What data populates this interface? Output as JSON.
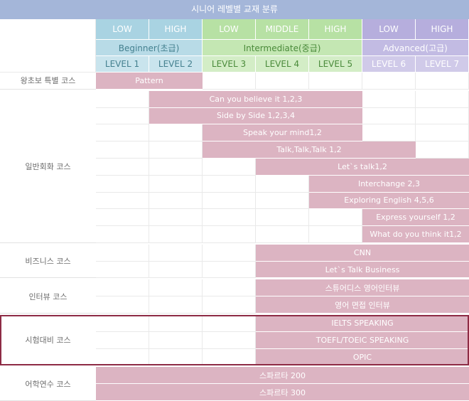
{
  "title": "시니어 레벨별 교재 분류",
  "header": {
    "sublevels": [
      {
        "label": "LOW",
        "group": "beginner"
      },
      {
        "label": "HIGH",
        "group": "beginner"
      },
      {
        "label": "LOW",
        "group": "intermediate"
      },
      {
        "label": "MIDDLE",
        "group": "intermediate"
      },
      {
        "label": "HIGH",
        "group": "intermediate"
      },
      {
        "label": "LOW",
        "group": "advanced"
      },
      {
        "label": "HIGH",
        "group": "advanced"
      }
    ],
    "groups": [
      {
        "key": "beginner",
        "label": "Beginner(초급)",
        "start": 1,
        "span": 2
      },
      {
        "key": "intermediate",
        "label": "Intermediate(중급)",
        "start": 3,
        "span": 3
      },
      {
        "key": "advanced",
        "label": "Advanced(고급)",
        "start": 6,
        "span": 2
      }
    ],
    "levels": [
      "LEVEL 1",
      "LEVEL 2",
      "LEVEL 3",
      "LEVEL 4",
      "LEVEL 5",
      "LEVEL 6",
      "LEVEL 7"
    ]
  },
  "colors": {
    "beginner": {
      "top": "#a9d3e2",
      "mid": "#b8dbe7",
      "level": "#c9e4ed",
      "text": "#44808f"
    },
    "intermediate": {
      "top": "#b7e1a4",
      "mid": "#c4e7b3",
      "level": "#d3edc6",
      "text": "#4a8a3a"
    },
    "advanced": {
      "top": "#b6aedd",
      "mid": "#c2bbe3",
      "level": "#d0cae9",
      "text": "#ffffff"
    },
    "title_bg": "#a4b6d9",
    "course_bg": "#dcb4c2",
    "highlight_border": "#8d2b45"
  },
  "categories": [
    {
      "name": "왕초보 특별 코스",
      "courses": [
        {
          "label": "Pattern",
          "from": 1,
          "to": 2
        }
      ]
    },
    {
      "name": "일반회화 코스",
      "courses": [
        {
          "label": "Can you believe it 1,2,3",
          "from": 2,
          "to": 5
        },
        {
          "label": "Side by Side 1,2,3,4",
          "from": 2,
          "to": 5
        },
        {
          "label": "Speak your mind1,2",
          "from": 3,
          "to": 5
        },
        {
          "label": "Talk,Talk,Talk 1,2",
          "from": 3,
          "to": 6
        },
        {
          "label": "Let`s talk1,2",
          "from": 4,
          "to": 7
        },
        {
          "label": "Interchange 2,3",
          "from": 5,
          "to": 7
        },
        {
          "label": "Exploring English 4,5,6",
          "from": 5,
          "to": 7
        },
        {
          "label": "Express yourself 1,2",
          "from": 6,
          "to": 7
        },
        {
          "label": "What do you think it1,2",
          "from": 6,
          "to": 7
        }
      ]
    },
    {
      "name": "비즈니스 코스",
      "courses": [
        {
          "label": "CNN",
          "from": 4,
          "to": 7
        },
        {
          "label": "Let`s Talk Business",
          "from": 4,
          "to": 7
        }
      ]
    },
    {
      "name": "인터뷰 코스",
      "courses": [
        {
          "label": "스튜어디스 영어인터뷰",
          "from": 4,
          "to": 7
        },
        {
          "label": "영어 면접 인터뷰",
          "from": 4,
          "to": 7
        }
      ]
    },
    {
      "name": "시험대비 코스",
      "highlighted": true,
      "courses": [
        {
          "label": "IELTS SPEAKING",
          "from": 4,
          "to": 7
        },
        {
          "label": "TOEFL/TOEIC SPEAKING",
          "from": 4,
          "to": 7
        },
        {
          "label": "OPIC",
          "from": 4,
          "to": 7
        }
      ]
    },
    {
      "name": "어학연수 코스",
      "courses": [
        {
          "label": "스파르타 200",
          "from": 1,
          "to": 7
        },
        {
          "label": "스파르타 300",
          "from": 1,
          "to": 7
        }
      ]
    }
  ]
}
